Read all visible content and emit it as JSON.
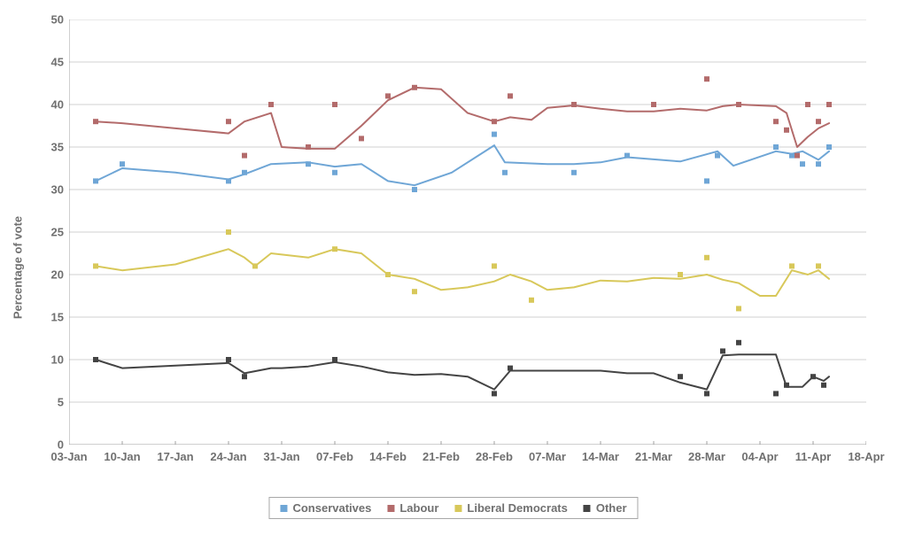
{
  "chart": {
    "type": "line-scatter",
    "background_color": "#ffffff",
    "grid_color": "#d0d0d0",
    "axis_color": "#a0a0a0",
    "text_color": "#707070",
    "ylabel": "Percentage of vote",
    "label_fontsize": 13,
    "tick_fontsize": 13,
    "ylim": [
      0,
      50
    ],
    "ytick_step": 5,
    "x_categories": [
      "03-Jan",
      "10-Jan",
      "17-Jan",
      "24-Jan",
      "31-Jan",
      "07-Feb",
      "14-Feb",
      "21-Feb",
      "28-Feb",
      "07-Mar",
      "14-Mar",
      "21-Mar",
      "28-Mar",
      "04-Apr",
      "11-Apr",
      "18-Apr"
    ],
    "line_width": 2,
    "marker_size": 3,
    "series": {
      "conservatives": {
        "label": "Conservatives",
        "color": "#6fa6d6",
        "line": [
          [
            0.5,
            31
          ],
          [
            1,
            32.5
          ],
          [
            2,
            32
          ],
          [
            3,
            31.2
          ],
          [
            3.3,
            31.8
          ],
          [
            3.8,
            33
          ],
          [
            4.5,
            33.2
          ],
          [
            5,
            32.7
          ],
          [
            5.5,
            33
          ],
          [
            6,
            31
          ],
          [
            6.5,
            30.5
          ],
          [
            7.2,
            32
          ],
          [
            8,
            35.2
          ],
          [
            8.2,
            33.2
          ],
          [
            9,
            33
          ],
          [
            9.5,
            33
          ],
          [
            10,
            33.2
          ],
          [
            10.5,
            33.8
          ],
          [
            11.5,
            33.3
          ],
          [
            12.2,
            34.5
          ],
          [
            12.5,
            32.8
          ],
          [
            13.3,
            34.5
          ],
          [
            13.6,
            34.2
          ],
          [
            13.8,
            34.5
          ],
          [
            14.1,
            33.5
          ],
          [
            14.3,
            34.5
          ]
        ],
        "points": [
          [
            0.5,
            31
          ],
          [
            1,
            33
          ],
          [
            3,
            31
          ],
          [
            3.3,
            32
          ],
          [
            4.5,
            33
          ],
          [
            5,
            32
          ],
          [
            6.5,
            30
          ],
          [
            8,
            36.5
          ],
          [
            8.2,
            32
          ],
          [
            9.5,
            32
          ],
          [
            10.5,
            34
          ],
          [
            12,
            31
          ],
          [
            12.2,
            34
          ],
          [
            13.3,
            35
          ],
          [
            13.6,
            34
          ],
          [
            13.8,
            33
          ],
          [
            14.1,
            33
          ],
          [
            14.3,
            35
          ]
        ]
      },
      "labour": {
        "label": "Labour",
        "color": "#b36b6b",
        "line": [
          [
            0.5,
            38
          ],
          [
            1,
            37.8
          ],
          [
            2,
            37.2
          ],
          [
            3,
            36.6
          ],
          [
            3.3,
            38
          ],
          [
            3.8,
            39
          ],
          [
            4,
            35
          ],
          [
            4.5,
            34.8
          ],
          [
            5,
            34.8
          ],
          [
            5.5,
            37.5
          ],
          [
            6,
            40.5
          ],
          [
            6.5,
            42
          ],
          [
            7,
            41.8
          ],
          [
            7.5,
            39
          ],
          [
            8,
            38
          ],
          [
            8.3,
            38.5
          ],
          [
            8.7,
            38.2
          ],
          [
            9,
            39.6
          ],
          [
            9.5,
            39.9
          ],
          [
            10,
            39.5
          ],
          [
            10.5,
            39.2
          ],
          [
            11,
            39.2
          ],
          [
            11.5,
            39.5
          ],
          [
            12,
            39.3
          ],
          [
            12.3,
            39.8
          ],
          [
            12.6,
            40
          ],
          [
            13.3,
            39.8
          ],
          [
            13.5,
            39
          ],
          [
            13.7,
            35
          ],
          [
            13.9,
            36.2
          ],
          [
            14.1,
            37.2
          ],
          [
            14.3,
            37.8
          ]
        ],
        "points": [
          [
            0.5,
            38
          ],
          [
            3,
            38
          ],
          [
            3.3,
            34
          ],
          [
            3.8,
            40
          ],
          [
            4.5,
            35
          ],
          [
            5,
            40
          ],
          [
            5.5,
            36
          ],
          [
            6,
            41
          ],
          [
            6.5,
            42
          ],
          [
            8,
            38
          ],
          [
            8.3,
            41
          ],
          [
            9.5,
            40
          ],
          [
            11,
            40
          ],
          [
            12,
            43
          ],
          [
            12.6,
            40
          ],
          [
            13.3,
            38
          ],
          [
            13.5,
            37
          ],
          [
            13.7,
            34
          ],
          [
            13.9,
            40
          ],
          [
            14.1,
            38
          ],
          [
            14.3,
            40
          ]
        ]
      },
      "libdems": {
        "label": "Liberal Democrats",
        "color": "#d8c85a",
        "line": [
          [
            0.5,
            21
          ],
          [
            1,
            20.5
          ],
          [
            2,
            21.2
          ],
          [
            3,
            23
          ],
          [
            3.3,
            22
          ],
          [
            3.5,
            21
          ],
          [
            3.8,
            22.5
          ],
          [
            4.5,
            22
          ],
          [
            5,
            23
          ],
          [
            5.5,
            22.5
          ],
          [
            6,
            20
          ],
          [
            6.5,
            19.5
          ],
          [
            7,
            18.2
          ],
          [
            7.5,
            18.5
          ],
          [
            8,
            19.2
          ],
          [
            8.3,
            20
          ],
          [
            8.7,
            19.2
          ],
          [
            9,
            18.2
          ],
          [
            9.5,
            18.5
          ],
          [
            10,
            19.3
          ],
          [
            10.5,
            19.2
          ],
          [
            11,
            19.6
          ],
          [
            11.5,
            19.5
          ],
          [
            12,
            20
          ],
          [
            12.3,
            19.4
          ],
          [
            12.6,
            19
          ],
          [
            13,
            17.5
          ],
          [
            13.3,
            17.5
          ],
          [
            13.6,
            20.5
          ],
          [
            13.9,
            20
          ],
          [
            14.1,
            20.5
          ],
          [
            14.3,
            19.5
          ]
        ],
        "points": [
          [
            0.5,
            21
          ],
          [
            3,
            25
          ],
          [
            3.5,
            21
          ],
          [
            5,
            23
          ],
          [
            6,
            20
          ],
          [
            6.5,
            18
          ],
          [
            8,
            21
          ],
          [
            8.7,
            17
          ],
          [
            11.5,
            20
          ],
          [
            12,
            22
          ],
          [
            12.6,
            16
          ],
          [
            13.6,
            21
          ],
          [
            14.1,
            21
          ]
        ]
      },
      "other": {
        "label": "Other",
        "color": "#444444",
        "line": [
          [
            0.5,
            10
          ],
          [
            1,
            9
          ],
          [
            2,
            9.3
          ],
          [
            3,
            9.6
          ],
          [
            3.3,
            8.4
          ],
          [
            3.8,
            9
          ],
          [
            4,
            9
          ],
          [
            4.5,
            9.2
          ],
          [
            5,
            9.7
          ],
          [
            5.5,
            9.2
          ],
          [
            6,
            8.5
          ],
          [
            6.5,
            8.2
          ],
          [
            7,
            8.3
          ],
          [
            7.5,
            8
          ],
          [
            8,
            6.5
          ],
          [
            8.3,
            8.7
          ],
          [
            8.7,
            8.7
          ],
          [
            9,
            8.7
          ],
          [
            9.5,
            8.7
          ],
          [
            10,
            8.7
          ],
          [
            10.5,
            8.4
          ],
          [
            11,
            8.4
          ],
          [
            11.5,
            7.3
          ],
          [
            12,
            6.5
          ],
          [
            12.3,
            10.5
          ],
          [
            12.6,
            10.6
          ],
          [
            13,
            10.6
          ],
          [
            13.3,
            10.6
          ],
          [
            13.5,
            6.8
          ],
          [
            13.8,
            6.8
          ],
          [
            14,
            8
          ],
          [
            14.2,
            7.5
          ],
          [
            14.3,
            8
          ]
        ],
        "points": [
          [
            0.5,
            10
          ],
          [
            3,
            10
          ],
          [
            3.3,
            8
          ],
          [
            5,
            10
          ],
          [
            8,
            6
          ],
          [
            8.3,
            9
          ],
          [
            11.5,
            8
          ],
          [
            12,
            6
          ],
          [
            12.3,
            11
          ],
          [
            12.6,
            12
          ],
          [
            13.3,
            6
          ],
          [
            13.5,
            7
          ],
          [
            14,
            8
          ],
          [
            14.2,
            7
          ]
        ]
      }
    },
    "legend_order": [
      "conservatives",
      "labour",
      "libdems",
      "other"
    ]
  }
}
